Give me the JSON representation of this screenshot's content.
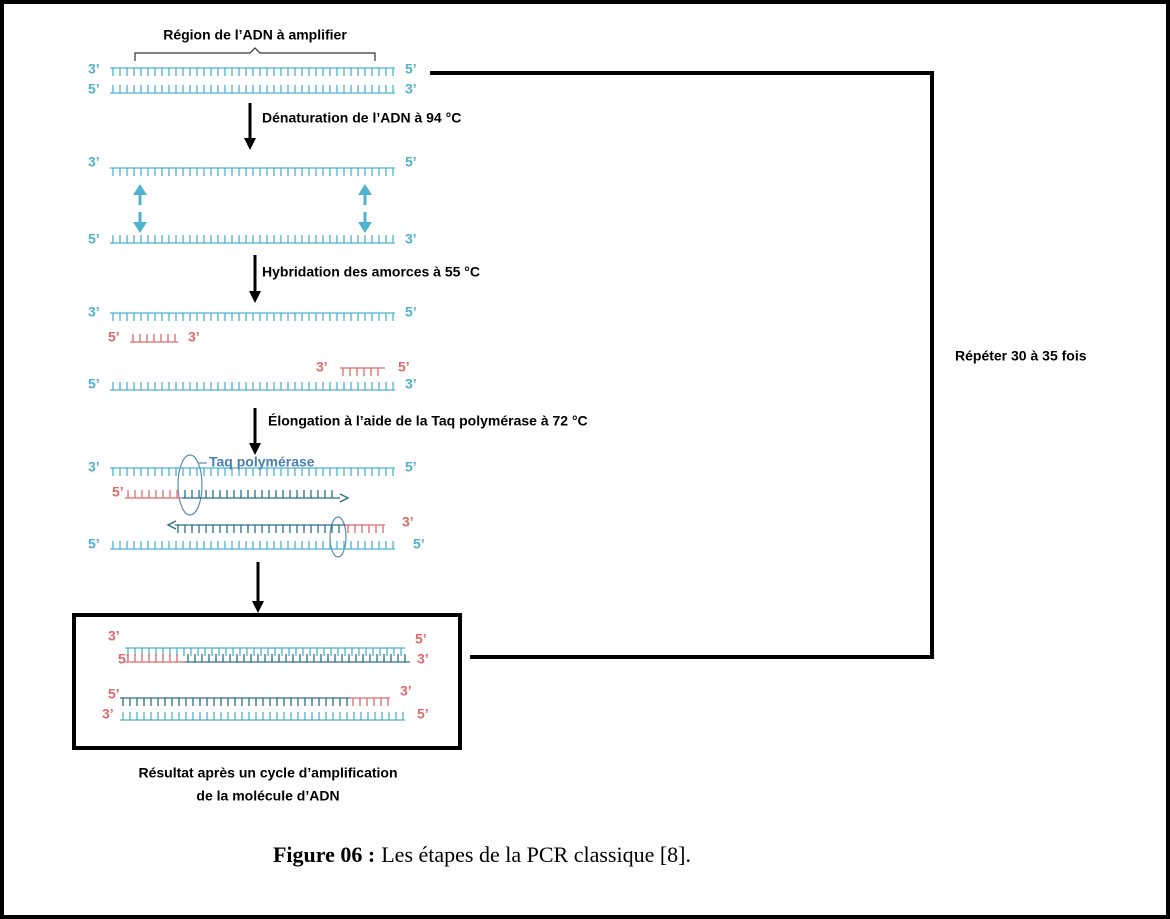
{
  "region_label": "Région de l’ADN à amplifier",
  "steps": [
    "Dénaturation de l’ADN à 94 °C",
    "Hybridation des amorces à 55 °C",
    "Élongation à l’aide de la Taq polymérase à 72 °C"
  ],
  "enzyme_label": "Taq polymérase",
  "repeat_label": "Répéter 30 à 35 fois",
  "result_caption": [
    "Résultat après un cycle d’amplification",
    "de la molécule d’ADN"
  ],
  "figure_caption": {
    "label": "Figure 06 :",
    "text": "Les étapes de la PCR classique [8]."
  },
  "strand_ends": [
    "3’",
    "5’",
    "5’",
    "3’",
    "3’",
    "5’",
    "5’",
    "3’",
    "3’",
    "5’",
    "5’",
    "3’",
    "3’",
    "5’",
    "5’",
    "3’",
    "3’",
    "5’",
    "5’",
    "3’",
    "5’",
    "5’",
    "3’",
    "5’",
    "5’",
    "3’",
    "5’",
    "3’",
    "3’",
    "5’"
  ]
}
